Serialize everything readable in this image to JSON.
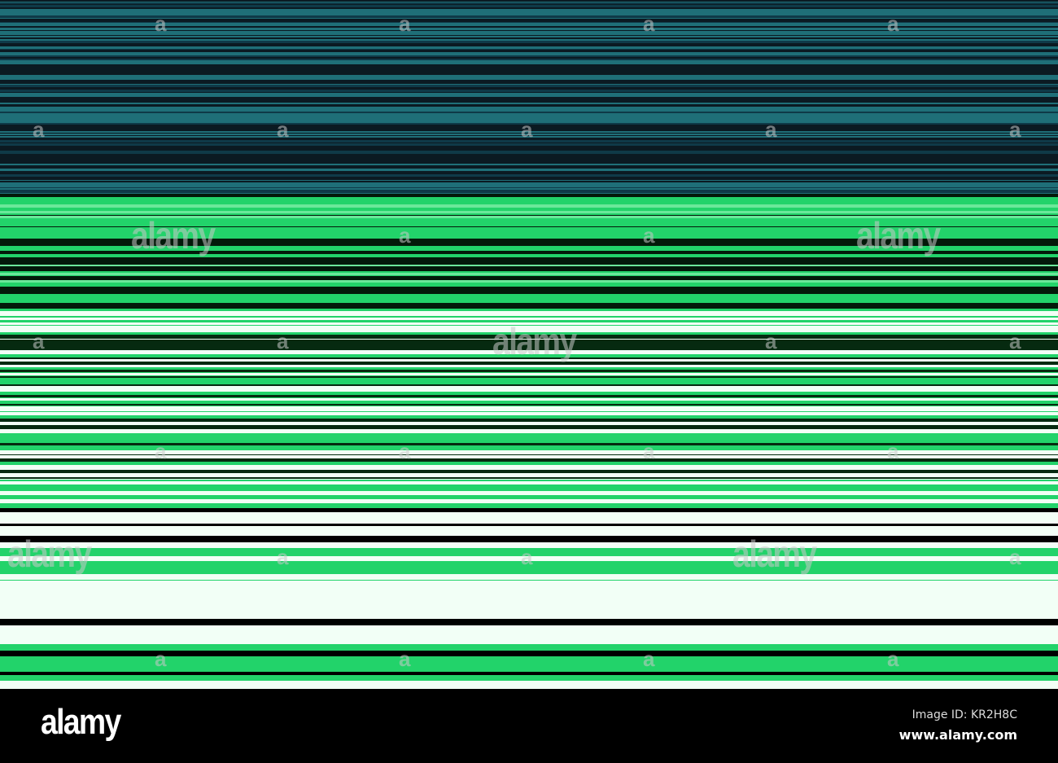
{
  "colors": {
    "top": "#0b1a22",
    "teal": "#1f6f78",
    "green": "#22d36a",
    "white": "#f2fff6",
    "black": "#000000"
  },
  "watermark": {
    "word": "alamy",
    "letter": "a"
  },
  "footer": {
    "logo": "alamy",
    "image_id": "Image ID: KR2H8C",
    "site": "www.alamy.com"
  }
}
